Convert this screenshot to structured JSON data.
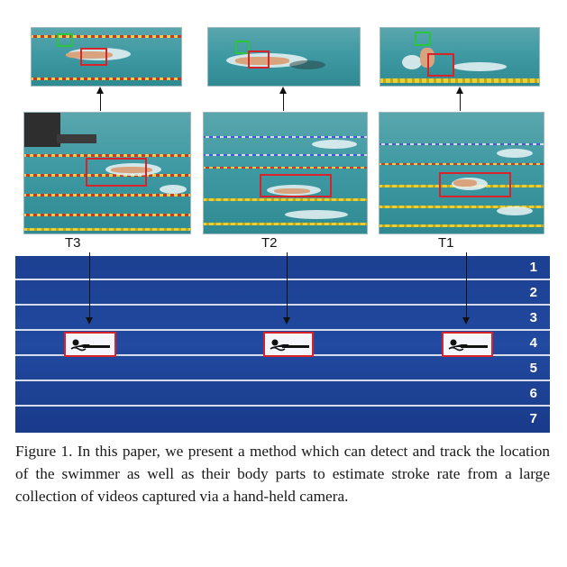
{
  "figure": {
    "tracks": [
      {
        "label": "T3"
      },
      {
        "label": "T2"
      },
      {
        "label": "T1"
      }
    ],
    "lanes": [
      {
        "number": "1"
      },
      {
        "number": "2"
      },
      {
        "number": "3"
      },
      {
        "number": "4"
      },
      {
        "number": "5"
      },
      {
        "number": "6"
      },
      {
        "number": "7"
      }
    ],
    "swimmer_lane": "4",
    "colors": {
      "lane_background": "#1f4599",
      "detection_box": "#d8232a",
      "head_box": "#2cc43a",
      "pool_water": "#3f9aa3"
    },
    "icons": [
      "swimmer-icon",
      "arrow-down-icon",
      "arrow-up-icon"
    ]
  },
  "caption": {
    "text": "Figure 1. In this paper, we present a method which can detect and track the location of the swimmer as well as their body parts to estimate stroke rate from a large collection of videos captured via a hand-held camera."
  }
}
